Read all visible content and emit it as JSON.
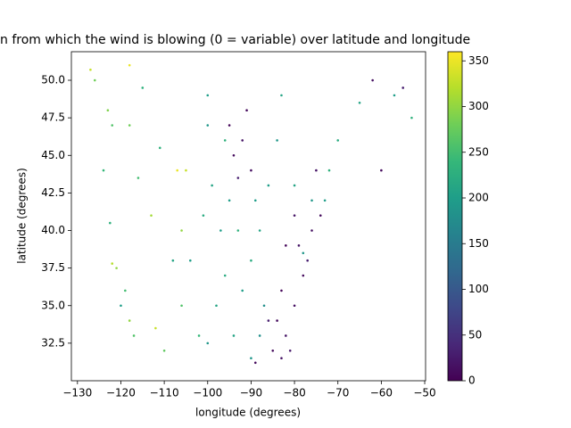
{
  "chart_data": {
    "type": "scatter",
    "title": "n from which the wind is blowing (0 = variable) over latitude and longitude",
    "x_label": "longitude (degrees)",
    "y_label": "latitude (degrees)",
    "x": [
      -123,
      -122,
      -124,
      -122.5,
      -121,
      -122,
      -119,
      -118,
      -117,
      -120,
      -112,
      -113,
      -116,
      -118,
      -111,
      -106,
      -106,
      -110,
      -105,
      -108,
      -104,
      -102,
      -100,
      -98,
      -96,
      -97,
      -99,
      -96,
      -100,
      -101,
      -94,
      -92,
      -90,
      -88,
      -89,
      -86,
      -84,
      -90,
      -88,
      -87,
      -93,
      -95,
      -80,
      -76,
      -73,
      -72,
      -70,
      -78,
      -126,
      -115,
      -100,
      -65,
      -57,
      -53,
      -83,
      -84,
      -82,
      -80,
      -83,
      -81,
      -78,
      -77,
      -79,
      -76,
      -74,
      -80,
      -82,
      -85,
      -86,
      -83,
      -94,
      -92,
      -95,
      -90,
      -93,
      -91,
      -75,
      -62,
      -55,
      -60,
      -89,
      -127,
      -118,
      -107
    ],
    "y": [
      48,
      47,
      44,
      40.5,
      37.5,
      37.8,
      36,
      34,
      33,
      35,
      33.5,
      41,
      43.5,
      47,
      45.5,
      40,
      35,
      32,
      44,
      38,
      38,
      33,
      32.5,
      35,
      37,
      40,
      43,
      46,
      47,
      41,
      33,
      36,
      38,
      40,
      42,
      43,
      46,
      31.5,
      33,
      35,
      40,
      42,
      43,
      42,
      42,
      44,
      46,
      38.5,
      50,
      49.5,
      49,
      48.5,
      49,
      47.5,
      49,
      34,
      33,
      35,
      36,
      32,
      37,
      38,
      39,
      40,
      41,
      41,
      39,
      32,
      34,
      31.5,
      45,
      46,
      47,
      44,
      43.5,
      48,
      44,
      50,
      49.5,
      44,
      31.2,
      50.7,
      51,
      44
    ],
    "c": [
      290,
      260,
      240,
      230,
      300,
      320,
      250,
      300,
      260,
      200,
      330,
      310,
      250,
      280,
      230,
      300,
      260,
      270,
      330,
      210,
      200,
      240,
      190,
      210,
      220,
      200,
      210,
      230,
      190,
      220,
      210,
      200,
      220,
      210,
      200,
      200,
      190,
      190,
      180,
      180,
      230,
      200,
      210,
      190,
      200,
      230,
      220,
      190,
      280,
      230,
      200,
      210,
      200,
      230,
      210,
      10,
      20,
      15,
      5,
      25,
      10,
      30,
      20,
      15,
      10,
      20,
      5,
      10,
      30,
      20,
      10,
      20,
      5,
      15,
      30,
      10,
      20,
      15,
      30,
      10,
      10,
      330,
      350,
      350
    ],
    "colormap": [
      "#440154",
      "#482878",
      "#3e4989",
      "#31688e",
      "#26828e",
      "#1f9e89",
      "#35b779",
      "#6ece58",
      "#b5de2b",
      "#fde725"
    ],
    "xlim": [
      -131.4,
      -49.8
    ],
    "ylim": [
      30.0,
      51.9
    ],
    "clim": [
      0,
      360
    ],
    "xticks": [
      {
        "value": -130,
        "label": "−130"
      },
      {
        "value": -120,
        "label": "−120"
      },
      {
        "value": -110,
        "label": "−110"
      },
      {
        "value": -100,
        "label": "−100"
      },
      {
        "value": -90,
        "label": "−90"
      },
      {
        "value": -80,
        "label": "−80"
      },
      {
        "value": -70,
        "label": "−70"
      },
      {
        "value": -60,
        "label": "−60"
      },
      {
        "value": -50,
        "label": "−50"
      }
    ],
    "yticks": [
      32.5,
      {
        "value": 35,
        "label": "35.0"
      },
      37.5,
      {
        "value": 40,
        "label": "40.0"
      },
      42.5,
      {
        "value": 45,
        "label": "45.0"
      },
      47.5,
      {
        "value": 50,
        "label": "50.0"
      }
    ],
    "cticks": [
      0,
      50,
      100,
      150,
      200,
      250,
      300,
      350
    ]
  }
}
